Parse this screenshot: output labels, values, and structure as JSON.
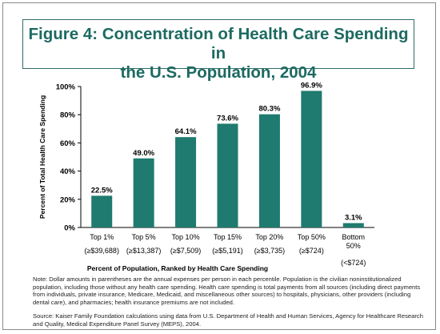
{
  "title": "Figure 4: Concentration of Health Care Spending in the U.S. Population, 2004",
  "note": "Note: Dollar amounts in parentheses are the annual expenses per person in each percentile. Population is the civilian noninstitutionalized population, including those without any health care spending. Health care spending is total payments from all sources (including direct payments from individuals, private insurance, Medicare, Medicaid, and miscellaneous other sources) to hospitals, physicians, other providers (including dental care), and pharmacies; health insurance premiums are not included.",
  "source": "Source: Kaiser Family Foundation calculations using data from U.S. Department of Health and Human Services, Agency for Healthcare Research and Quality, Medical Expenditure Panel Survey (MEPS), 2004.",
  "colors": {
    "bar": "#1f7a6f",
    "title": "#1d6a62",
    "axis": "#000000"
  },
  "chart_data": {
    "type": "bar",
    "title": "Figure 4: Concentration of Health Care Spending in the U.S. Population, 2004",
    "xlabel": "Percent of Population, Ranked by Health Care Spending",
    "ylabel": "Percent of Total Health Care Spending",
    "ylim": [
      0,
      100
    ],
    "yticks": [
      "0%",
      "20%",
      "40%",
      "60%",
      "80%",
      "100%"
    ],
    "ytick_values": [
      0,
      20,
      40,
      60,
      80,
      100
    ],
    "categories": [
      "Top 1%",
      "Top 5%",
      "Top 10%",
      "Top 15%",
      "Top 20%",
      "Top 50%",
      "Bottom 50%"
    ],
    "sublabels": [
      "(≥$39,688)",
      "(≥$13,387)",
      "(≥$7,509)",
      "(≥$5,191)",
      "(≥$3,735)",
      "(≥$724)",
      "(<$724)"
    ],
    "values": [
      22.5,
      49.0,
      64.1,
      73.6,
      80.3,
      96.9,
      3.1
    ],
    "value_labels": [
      "22.5%",
      "49.0%",
      "64.1%",
      "73.6%",
      "80.3%",
      "96.9%",
      "3.1%"
    ],
    "grid": false,
    "legend": "none"
  }
}
